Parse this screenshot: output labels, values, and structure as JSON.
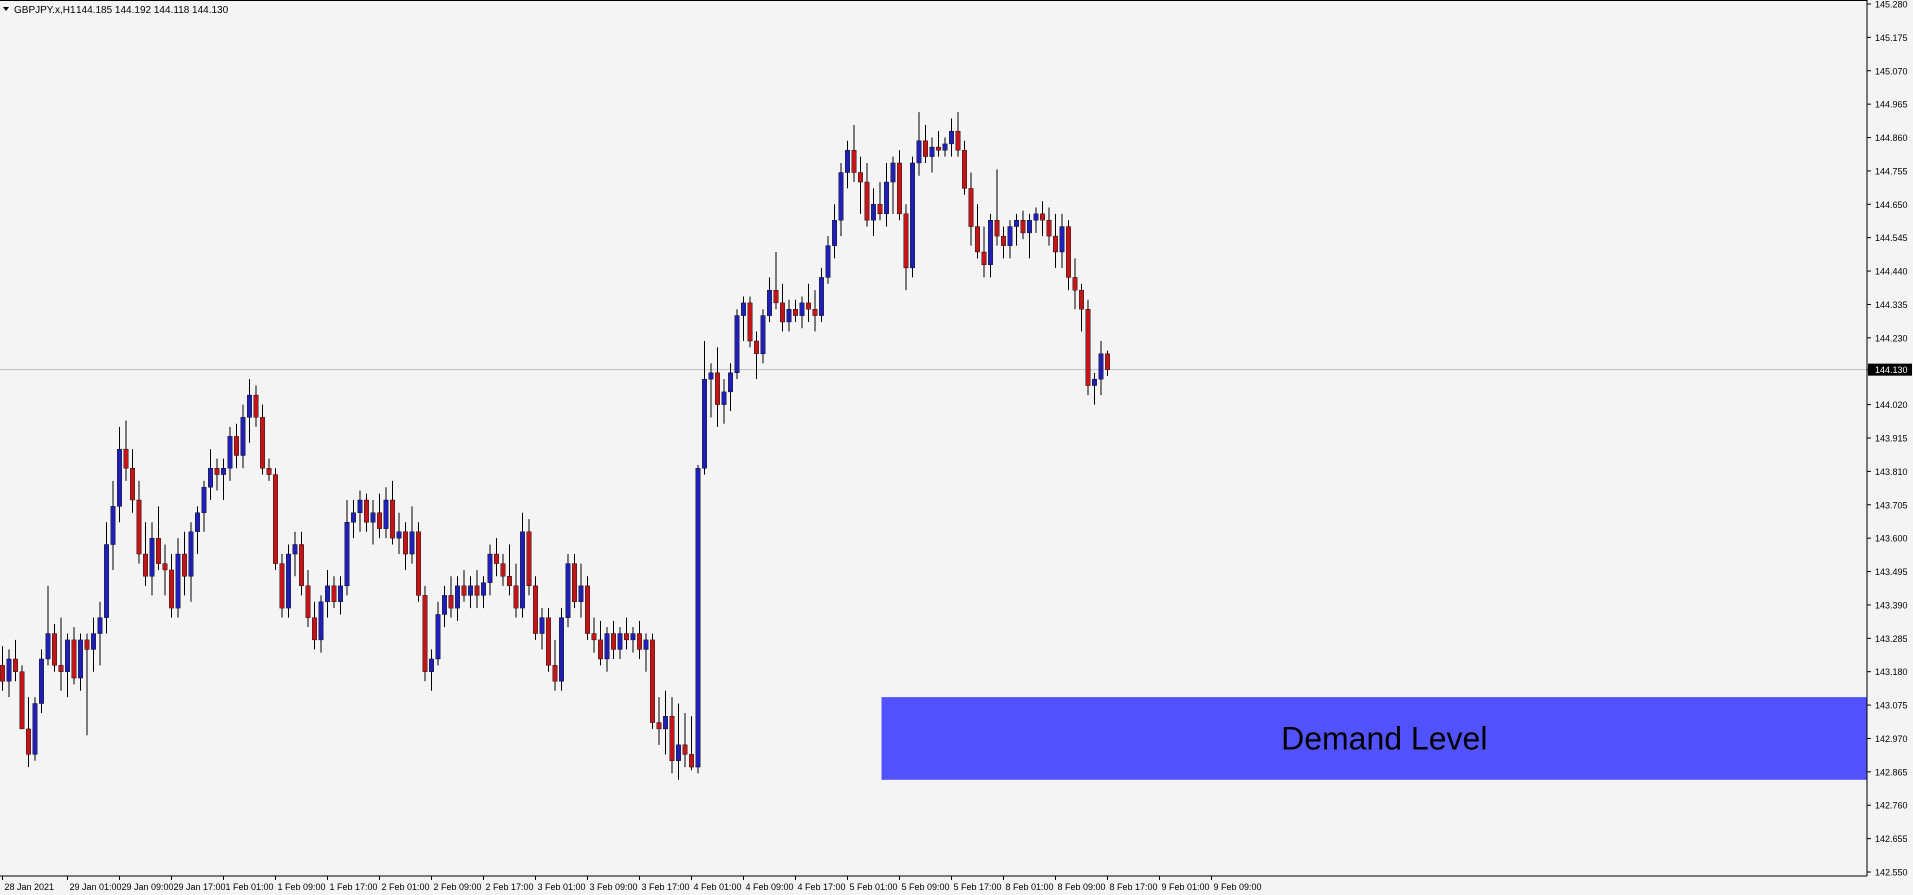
{
  "header": {
    "symbol": "GBPJPY.x,H1",
    "ohlc": "144.185 144.192 144.118 144.130"
  },
  "colors": {
    "background": "#f4f4f4",
    "bull": "#1f1fb4",
    "bear": "#c0161a",
    "wick": "#000000",
    "zone": "#5252fc",
    "price_line": "#c0c0c0",
    "axis": "#000000"
  },
  "current_price": {
    "value": 144.13,
    "label": "144.130"
  },
  "zone": {
    "label": "Demand Level",
    "low": 142.84,
    "high": 143.1,
    "from_index": 136
  },
  "chart_data": {
    "type": "candlestick",
    "ylim": [
      142.55,
      145.28
    ],
    "yticks": [
      "145.280",
      "145.175",
      "145.070",
      "144.965",
      "144.860",
      "144.755",
      "144.650",
      "144.545",
      "144.440",
      "144.335",
      "144.230",
      "144.130",
      "144.020",
      "143.915",
      "143.810",
      "143.705",
      "143.600",
      "143.495",
      "143.390",
      "143.285",
      "143.180",
      "143.075",
      "142.970",
      "142.865",
      "142.760",
      "142.655",
      "142.550"
    ],
    "xticks": [
      {
        "label": "28 Jan 2021",
        "index": 0
      },
      {
        "label": "29 Jan 01:00",
        "index": 10
      },
      {
        "label": "29 Jan 09:00",
        "index": 18
      },
      {
        "label": "29 Jan 17:00",
        "index": 26
      },
      {
        "label": "1 Feb 01:00",
        "index": 34
      },
      {
        "label": "1 Feb 09:00",
        "index": 42
      },
      {
        "label": "1 Feb 17:00",
        "index": 50
      },
      {
        "label": "2 Feb 01:00",
        "index": 58
      },
      {
        "label": "2 Feb 09:00",
        "index": 66
      },
      {
        "label": "2 Feb 17:00",
        "index": 74
      },
      {
        "label": "3 Feb 01:00",
        "index": 82
      },
      {
        "label": "3 Feb 09:00",
        "index": 90
      },
      {
        "label": "3 Feb 17:00",
        "index": 98
      },
      {
        "label": "4 Feb 01:00",
        "index": 106
      },
      {
        "label": "4 Feb 09:00",
        "index": 114
      },
      {
        "label": "4 Feb 17:00",
        "index": 122
      },
      {
        "label": "5 Feb 01:00",
        "index": 130
      },
      {
        "label": "5 Feb 09:00",
        "index": 138
      },
      {
        "label": "5 Feb 17:00",
        "index": 146
      },
      {
        "label": "8 Feb 01:00",
        "index": 154
      },
      {
        "label": "8 Feb 09:00",
        "index": 162
      },
      {
        "label": "8 Feb 17:00",
        "index": 170
      },
      {
        "label": "9 Feb 01:00",
        "index": 178
      },
      {
        "label": "9 Feb 09:00",
        "index": 186
      }
    ],
    "candles": [
      [
        143.2,
        143.26,
        143.12,
        143.15
      ],
      [
        143.15,
        143.25,
        143.1,
        143.22
      ],
      [
        143.22,
        143.28,
        143.15,
        143.18
      ],
      [
        143.18,
        143.2,
        143.0,
        143.0
      ],
      [
        143.0,
        143.1,
        142.88,
        142.92
      ],
      [
        142.92,
        143.1,
        142.9,
        143.08
      ],
      [
        143.08,
        143.25,
        143.05,
        143.22
      ],
      [
        143.22,
        143.45,
        143.2,
        143.3
      ],
      [
        143.3,
        143.33,
        143.18,
        143.2
      ],
      [
        143.2,
        143.35,
        143.12,
        143.18
      ],
      [
        143.18,
        143.3,
        143.1,
        143.28
      ],
      [
        143.28,
        143.32,
        143.14,
        143.16
      ],
      [
        143.16,
        143.3,
        143.12,
        143.28
      ],
      [
        143.28,
        143.3,
        142.98,
        143.25
      ],
      [
        143.25,
        143.35,
        143.18,
        143.3
      ],
      [
        143.3,
        143.4,
        143.2,
        143.35
      ],
      [
        143.35,
        143.65,
        143.3,
        143.58
      ],
      [
        143.58,
        143.78,
        143.5,
        143.7
      ],
      [
        143.7,
        143.95,
        143.65,
        143.88
      ],
      [
        143.88,
        143.97,
        143.78,
        143.82
      ],
      [
        143.82,
        143.88,
        143.68,
        143.72
      ],
      [
        143.72,
        143.78,
        143.52,
        143.55
      ],
      [
        143.55,
        143.65,
        143.45,
        143.48
      ],
      [
        143.48,
        143.65,
        143.42,
        143.6
      ],
      [
        143.6,
        143.7,
        143.5,
        143.52
      ],
      [
        143.52,
        143.58,
        143.42,
        143.5
      ],
      [
        143.5,
        143.55,
        143.35,
        143.38
      ],
      [
        143.38,
        143.6,
        143.35,
        143.55
      ],
      [
        143.55,
        143.62,
        143.42,
        143.48
      ],
      [
        143.48,
        143.65,
        143.4,
        143.62
      ],
      [
        143.62,
        143.7,
        143.55,
        143.68
      ],
      [
        143.68,
        143.78,
        143.62,
        143.76
      ],
      [
        143.76,
        143.88,
        143.72,
        143.82
      ],
      [
        143.82,
        143.85,
        143.75,
        143.8
      ],
      [
        143.8,
        143.85,
        143.72,
        143.82
      ],
      [
        143.82,
        143.95,
        143.78,
        143.92
      ],
      [
        143.92,
        143.96,
        143.82,
        143.86
      ],
      [
        143.86,
        144.02,
        143.82,
        143.98
      ],
      [
        143.98,
        144.1,
        143.9,
        144.05
      ],
      [
        144.05,
        144.08,
        143.95,
        143.98
      ],
      [
        143.98,
        144.02,
        143.8,
        143.82
      ],
      [
        143.82,
        143.85,
        143.78,
        143.8
      ],
      [
        143.8,
        143.82,
        143.5,
        143.52
      ],
      [
        143.52,
        143.55,
        143.35,
        143.38
      ],
      [
        143.38,
        143.58,
        143.35,
        143.55
      ],
      [
        143.55,
        143.62,
        143.48,
        143.58
      ],
      [
        143.58,
        143.62,
        143.42,
        143.45
      ],
      [
        143.45,
        143.5,
        143.32,
        143.35
      ],
      [
        143.35,
        143.4,
        143.25,
        143.28
      ],
      [
        143.28,
        143.42,
        143.24,
        143.4
      ],
      [
        143.4,
        143.5,
        143.35,
        143.45
      ],
      [
        143.45,
        143.48,
        143.38,
        143.4
      ],
      [
        143.4,
        143.48,
        143.36,
        143.45
      ],
      [
        143.45,
        143.72,
        143.42,
        143.65
      ],
      [
        143.65,
        143.72,
        143.6,
        143.68
      ],
      [
        143.68,
        143.75,
        143.62,
        143.72
      ],
      [
        143.72,
        143.74,
        143.62,
        143.65
      ],
      [
        143.65,
        143.72,
        143.58,
        143.68
      ],
      [
        143.68,
        143.74,
        143.6,
        143.63
      ],
      [
        143.63,
        143.76,
        143.6,
        143.72
      ],
      [
        143.72,
        143.78,
        143.58,
        143.6
      ],
      [
        143.6,
        143.68,
        143.55,
        143.62
      ],
      [
        143.62,
        143.65,
        143.5,
        143.55
      ],
      [
        143.55,
        143.7,
        143.52,
        143.62
      ],
      [
        143.62,
        143.65,
        143.4,
        143.42
      ],
      [
        143.42,
        143.45,
        143.15,
        143.18
      ],
      [
        143.18,
        143.25,
        143.12,
        143.22
      ],
      [
        143.22,
        143.4,
        143.2,
        143.36
      ],
      [
        143.36,
        143.45,
        143.32,
        143.42
      ],
      [
        143.42,
        143.48,
        143.35,
        143.38
      ],
      [
        143.38,
        143.48,
        143.34,
        143.45
      ],
      [
        143.45,
        143.5,
        143.4,
        143.42
      ],
      [
        143.42,
        143.48,
        143.38,
        143.45
      ],
      [
        143.45,
        143.5,
        143.38,
        143.42
      ],
      [
        143.42,
        143.48,
        143.38,
        143.46
      ],
      [
        143.46,
        143.58,
        143.42,
        143.55
      ],
      [
        143.55,
        143.6,
        143.48,
        143.52
      ],
      [
        143.52,
        143.55,
        143.45,
        143.48
      ],
      [
        143.48,
        143.58,
        143.42,
        143.45
      ],
      [
        143.45,
        143.52,
        143.35,
        143.38
      ],
      [
        143.38,
        143.68,
        143.35,
        143.62
      ],
      [
        143.62,
        143.66,
        143.42,
        143.45
      ],
      [
        143.45,
        143.48,
        143.28,
        143.3
      ],
      [
        143.3,
        143.38,
        143.25,
        143.35
      ],
      [
        143.35,
        143.38,
        143.18,
        143.2
      ],
      [
        143.2,
        143.28,
        143.12,
        143.15
      ],
      [
        143.15,
        143.38,
        143.12,
        143.35
      ],
      [
        143.35,
        143.55,
        143.32,
        143.52
      ],
      [
        143.52,
        143.55,
        143.38,
        143.4
      ],
      [
        143.4,
        143.52,
        143.35,
        143.45
      ],
      [
        143.45,
        143.48,
        143.28,
        143.3
      ],
      [
        143.3,
        143.35,
        143.24,
        143.28
      ],
      [
        143.28,
        143.34,
        143.2,
        143.22
      ],
      [
        143.22,
        143.32,
        143.18,
        143.3
      ],
      [
        143.3,
        143.34,
        143.22,
        143.25
      ],
      [
        143.25,
        143.32,
        143.22,
        143.3
      ],
      [
        143.3,
        143.35,
        143.25,
        143.28
      ],
      [
        143.28,
        143.32,
        143.24,
        143.3
      ],
      [
        143.3,
        143.34,
        143.22,
        143.25
      ],
      [
        143.25,
        143.3,
        143.18,
        143.28
      ],
      [
        143.28,
        143.3,
        143.0,
        143.02
      ],
      [
        143.02,
        143.1,
        142.95,
        143.0
      ],
      [
        143.0,
        143.12,
        142.92,
        143.04
      ],
      [
        143.04,
        143.1,
        142.86,
        142.9
      ],
      [
        142.9,
        143.08,
        142.84,
        142.95
      ],
      [
        142.95,
        143.05,
        142.88,
        142.92
      ],
      [
        142.92,
        143.04,
        142.87,
        142.88
      ],
      [
        142.88,
        143.83,
        142.86,
        143.82
      ],
      [
        143.82,
        144.22,
        143.8,
        144.1
      ],
      [
        144.1,
        144.15,
        143.98,
        144.12
      ],
      [
        144.12,
        144.2,
        143.95,
        144.02
      ],
      [
        144.02,
        144.1,
        143.96,
        144.06
      ],
      [
        144.06,
        144.15,
        144.0,
        144.12
      ],
      [
        144.12,
        144.32,
        144.1,
        144.3
      ],
      [
        144.3,
        144.36,
        144.22,
        144.34
      ],
      [
        144.34,
        144.36,
        144.2,
        144.22
      ],
      [
        144.22,
        144.25,
        144.1,
        144.18
      ],
      [
        144.18,
        144.32,
        144.15,
        144.3
      ],
      [
        144.3,
        144.42,
        144.28,
        144.38
      ],
      [
        144.38,
        144.5,
        144.32,
        144.34
      ],
      [
        144.34,
        144.4,
        144.25,
        144.28
      ],
      [
        144.28,
        144.35,
        144.25,
        144.32
      ],
      [
        144.32,
        144.35,
        144.28,
        144.3
      ],
      [
        144.3,
        144.36,
        144.26,
        144.34
      ],
      [
        144.34,
        144.4,
        144.28,
        144.32
      ],
      [
        144.32,
        144.38,
        144.25,
        144.3
      ],
      [
        144.3,
        144.45,
        144.28,
        144.42
      ],
      [
        144.42,
        144.55,
        144.4,
        144.52
      ],
      [
        144.52,
        144.65,
        144.48,
        144.6
      ],
      [
        144.6,
        144.78,
        144.55,
        144.75
      ],
      [
        144.75,
        144.85,
        144.7,
        144.82
      ],
      [
        144.82,
        144.9,
        144.72,
        144.75
      ],
      [
        144.75,
        144.8,
        144.62,
        144.72
      ],
      [
        144.72,
        144.78,
        144.58,
        144.6
      ],
      [
        144.6,
        144.7,
        144.55,
        144.65
      ],
      [
        144.65,
        144.72,
        144.6,
        144.62
      ],
      [
        144.62,
        144.78,
        144.58,
        144.72
      ],
      [
        144.72,
        144.8,
        144.62,
        144.78
      ],
      [
        144.78,
        144.82,
        144.6,
        144.62
      ],
      [
        144.62,
        144.65,
        144.38,
        144.45
      ],
      [
        144.45,
        144.8,
        144.42,
        144.78
      ],
      [
        144.78,
        144.94,
        144.74,
        144.85
      ],
      [
        144.85,
        144.9,
        144.78,
        144.8
      ],
      [
        144.8,
        144.86,
        144.75,
        144.83
      ],
      [
        144.83,
        144.88,
        144.8,
        144.82
      ],
      [
        144.82,
        144.86,
        144.8,
        144.84
      ],
      [
        144.84,
        144.92,
        144.8,
        144.88
      ],
      [
        144.88,
        144.94,
        144.8,
        144.82
      ],
      [
        144.82,
        144.85,
        144.68,
        144.7
      ],
      [
        144.7,
        144.75,
        144.52,
        144.58
      ],
      [
        144.58,
        144.65,
        144.48,
        144.5
      ],
      [
        144.5,
        144.58,
        144.42,
        144.46
      ],
      [
        144.46,
        144.62,
        144.42,
        144.6
      ],
      [
        144.6,
        144.76,
        144.52,
        144.55
      ],
      [
        144.55,
        144.58,
        144.48,
        144.52
      ],
      [
        144.52,
        144.6,
        144.48,
        144.58
      ],
      [
        144.58,
        144.62,
        144.52,
        144.6
      ],
      [
        144.6,
        144.63,
        144.54,
        144.56
      ],
      [
        144.56,
        144.62,
        144.48,
        144.6
      ],
      [
        144.6,
        144.64,
        144.56,
        144.62
      ],
      [
        144.62,
        144.66,
        144.55,
        144.6
      ],
      [
        144.6,
        144.64,
        144.52,
        144.55
      ],
      [
        144.55,
        144.62,
        144.45,
        144.5
      ],
      [
        144.5,
        144.62,
        144.45,
        144.58
      ],
      [
        144.58,
        144.6,
        144.38,
        144.42
      ],
      [
        144.42,
        144.48,
        144.32,
        144.38
      ],
      [
        144.38,
        144.4,
        144.25,
        144.32
      ],
      [
        144.32,
        144.35,
        144.05,
        144.08
      ],
      [
        144.08,
        144.12,
        144.02,
        144.1
      ],
      [
        144.1,
        144.22,
        144.05,
        144.18
      ],
      [
        144.18,
        144.19,
        144.11,
        144.13
      ]
    ]
  }
}
